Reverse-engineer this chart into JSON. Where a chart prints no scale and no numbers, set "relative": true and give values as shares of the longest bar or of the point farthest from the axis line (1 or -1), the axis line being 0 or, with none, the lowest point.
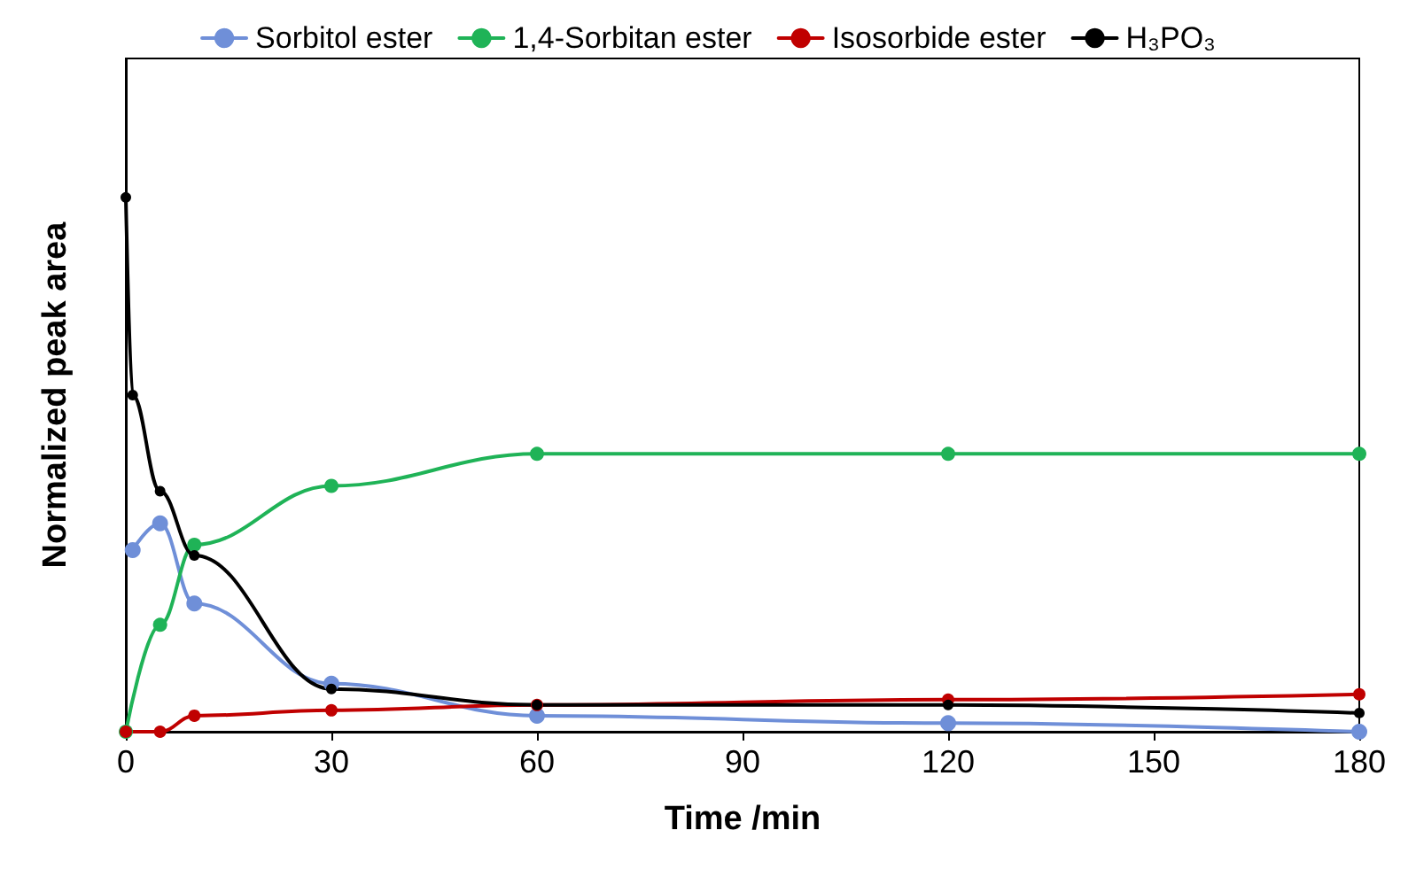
{
  "chart_data": {
    "type": "line",
    "relative": true,
    "xlabel": "Time /min",
    "ylabel": "Normalized peak area",
    "xlim": [
      0,
      180
    ],
    "xticks": [
      0,
      30,
      60,
      90,
      120,
      150,
      180
    ],
    "grid": false,
    "legend": "top",
    "marker": "circle",
    "line_style": "solid",
    "series": [
      {
        "name": "Sorbitol ester",
        "color": "#6f8fd8",
        "x": [
          1,
          5,
          10,
          30,
          60,
          120,
          180
        ],
        "values": [
          0.34,
          0.39,
          0.24,
          0.09,
          0.03,
          0.016,
          0
        ]
      },
      {
        "name": "1,4-Sorbitan ester",
        "color": "#1fb357",
        "x": [
          0,
          5,
          10,
          30,
          60,
          120,
          180
        ],
        "values": [
          0,
          0.2,
          0.35,
          0.46,
          0.52,
          0.52,
          0.52
        ]
      },
      {
        "name": "Isosorbide ester",
        "color": "#c00000",
        "x": [
          0,
          5,
          10,
          30,
          60,
          120,
          180
        ],
        "values": [
          0,
          0,
          0.03,
          0.04,
          0.05,
          0.06,
          0.07
        ]
      },
      {
        "name": "H₃PO₃",
        "color": "#000000",
        "x": [
          0,
          1,
          5,
          10,
          30,
          60,
          120,
          180
        ],
        "values": [
          1,
          0.63,
          0.45,
          0.33,
          0.08,
          0.05,
          0.05,
          0.035
        ]
      }
    ]
  }
}
